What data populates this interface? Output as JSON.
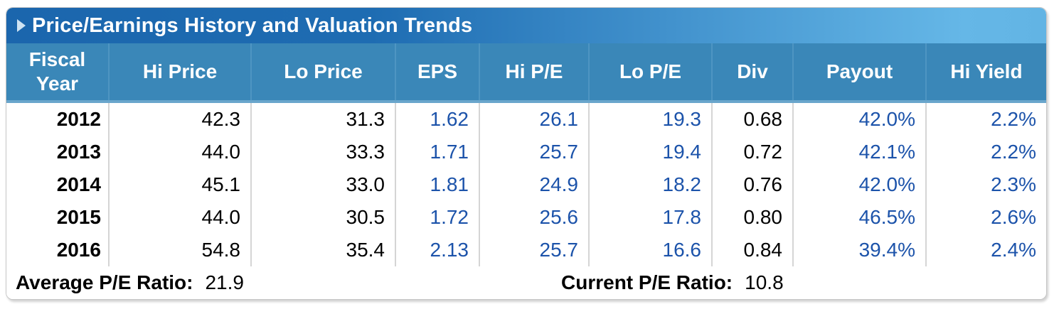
{
  "title_bar": {
    "title": "Price/Earnings History and Valuation Trends",
    "expander_icon": "right-triangle"
  },
  "colors": {
    "title_gradient_start": "#1b66ad",
    "title_gradient_end": "#65b7e7",
    "header_bg": "#3a87b8",
    "header_text": "#ffffff",
    "blue_value_text": "#1c53aa",
    "black_value_text": "#000000",
    "column_separator": "#d5d5d5",
    "card_border": "#c6c6c6"
  },
  "table": {
    "columns": [
      {
        "key": "fiscal-year",
        "label": "Fiscal Year",
        "color": "black"
      },
      {
        "key": "hi-price",
        "label": "Hi Price",
        "color": "black"
      },
      {
        "key": "lo-price",
        "label": "Lo Price",
        "color": "black"
      },
      {
        "key": "eps",
        "label": "EPS",
        "color": "blue"
      },
      {
        "key": "hi-pe",
        "label": "Hi P/E",
        "color": "blue"
      },
      {
        "key": "lo-pe",
        "label": "Lo P/E",
        "color": "blue"
      },
      {
        "key": "div",
        "label": "Div",
        "color": "black"
      },
      {
        "key": "payout",
        "label": "Payout",
        "color": "blue"
      },
      {
        "key": "hi-yield",
        "label": "Hi Yield",
        "color": "blue"
      }
    ],
    "rows": [
      [
        "2012",
        "42.3",
        "31.3",
        "1.62",
        "26.1",
        "19.3",
        "0.68",
        "42.0%",
        "2.2%"
      ],
      [
        "2013",
        "44.0",
        "33.3",
        "1.71",
        "25.7",
        "19.4",
        "0.72",
        "42.1%",
        "2.2%"
      ],
      [
        "2014",
        "45.1",
        "33.0",
        "1.81",
        "24.9",
        "18.2",
        "0.76",
        "42.0%",
        "2.3%"
      ],
      [
        "2015",
        "44.0",
        "30.5",
        "1.72",
        "25.6",
        "17.8",
        "0.80",
        "46.5%",
        "2.6%"
      ],
      [
        "2016",
        "54.8",
        "35.4",
        "2.13",
        "25.7",
        "16.6",
        "0.84",
        "39.4%",
        "2.4%"
      ]
    ]
  },
  "footer": {
    "average_label": "Average P/E Ratio:",
    "average_value": "21.9",
    "current_label": "Current P/E Ratio:",
    "current_value": "10.8"
  },
  "chart_data": {
    "type": "table",
    "title": "Price/Earnings History and Valuation Trends",
    "columns": [
      "Fiscal Year",
      "Hi Price",
      "Lo Price",
      "EPS",
      "Hi P/E",
      "Lo P/E",
      "Div",
      "Payout",
      "Hi Yield"
    ],
    "rows": [
      [
        "2012",
        42.3,
        31.3,
        1.62,
        26.1,
        19.3,
        0.68,
        "42.0%",
        "2.2%"
      ],
      [
        "2013",
        44.0,
        33.3,
        1.71,
        25.7,
        19.4,
        0.72,
        "42.1%",
        "2.2%"
      ],
      [
        "2014",
        45.1,
        33.0,
        1.81,
        24.9,
        18.2,
        0.76,
        "42.0%",
        "2.3%"
      ],
      [
        "2015",
        44.0,
        30.5,
        1.72,
        25.6,
        17.8,
        0.8,
        "46.5%",
        "2.6%"
      ],
      [
        "2016",
        54.8,
        35.4,
        2.13,
        25.7,
        16.6,
        0.84,
        "39.4%",
        "2.4%"
      ]
    ],
    "average_pe_ratio": 21.9,
    "current_pe_ratio": 10.8
  }
}
